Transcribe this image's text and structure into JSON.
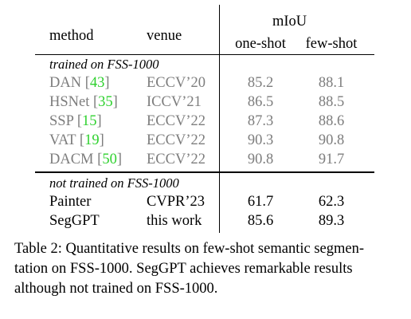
{
  "table": {
    "headers": {
      "method": "method",
      "venue": "venue",
      "miou": "mIoU",
      "one_shot": "one-shot",
      "few_shot": "few-shot"
    },
    "group_trained": {
      "label": "trained on FSS-1000",
      "rows": [
        {
          "method": "DAN",
          "ref": "43",
          "venue": "ECCV’20",
          "one_shot": "85.2",
          "few_shot": "88.1"
        },
        {
          "method": "HSNet",
          "ref": "35",
          "venue": "ICCV’21",
          "one_shot": "86.5",
          "few_shot": "88.5"
        },
        {
          "method": "SSP",
          "ref": "15",
          "venue": "ECCV’22",
          "one_shot": "87.3",
          "few_shot": "88.6"
        },
        {
          "method": "VAT",
          "ref": "19",
          "venue": "ECCV’22",
          "one_shot": "90.3",
          "few_shot": "90.8"
        },
        {
          "method": "DACM",
          "ref": "50",
          "venue": "ECCV’22",
          "one_shot": "90.8",
          "few_shot": "91.7"
        }
      ]
    },
    "group_not_trained": {
      "label": "not trained on FSS-1000",
      "rows": [
        {
          "method": "Painter",
          "venue": "CVPR’23",
          "one_shot": "61.7",
          "few_shot": "62.3"
        },
        {
          "method": "SegGPT",
          "venue": "this work",
          "one_shot": "85.6",
          "few_shot": "89.3"
        }
      ]
    },
    "colors": {
      "reference": "#2fd12f",
      "gray_text": "#7d7d7d"
    }
  },
  "caption": {
    "line1": "Table 2: Quantitative results on few-shot semantic segmen-",
    "line2": "tation on FSS-1000.  SegGPT achieves remarkable results",
    "line3": "although not trained on FSS-1000."
  }
}
